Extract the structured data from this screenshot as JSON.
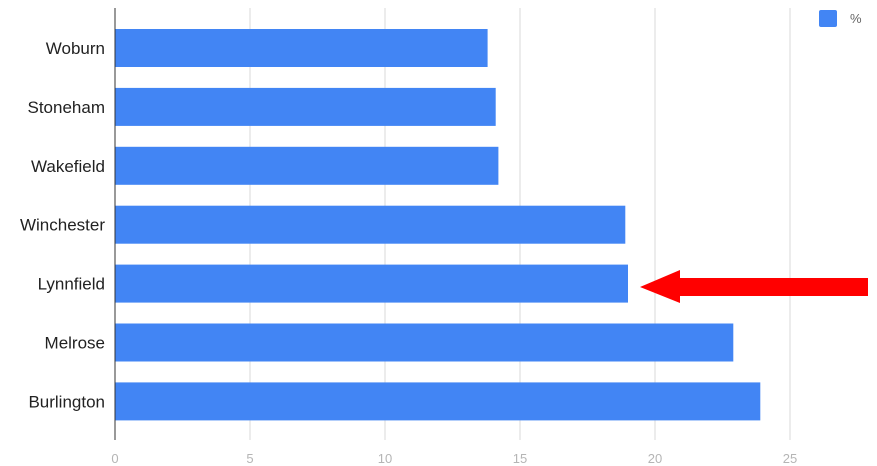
{
  "chart_data": {
    "type": "bar",
    "orientation": "horizontal",
    "categories": [
      "Woburn",
      "Stoneham",
      "Wakefield",
      "Winchester",
      "Lynnfield",
      "Melrose",
      "Burlington"
    ],
    "series": [
      {
        "name": "%",
        "values": [
          13.8,
          14.1,
          14.2,
          18.9,
          19.0,
          22.9,
          23.9
        ],
        "color": "#4285f4"
      }
    ],
    "title": "",
    "xlabel": "",
    "ylabel": "",
    "xlim": [
      0,
      28
    ],
    "xticks": [
      0,
      5,
      10,
      15,
      20,
      25
    ],
    "grid": true,
    "legend": "top-right",
    "annotation": {
      "type": "arrow",
      "points_to": "Lynnfield",
      "color": "#ff0000"
    }
  }
}
